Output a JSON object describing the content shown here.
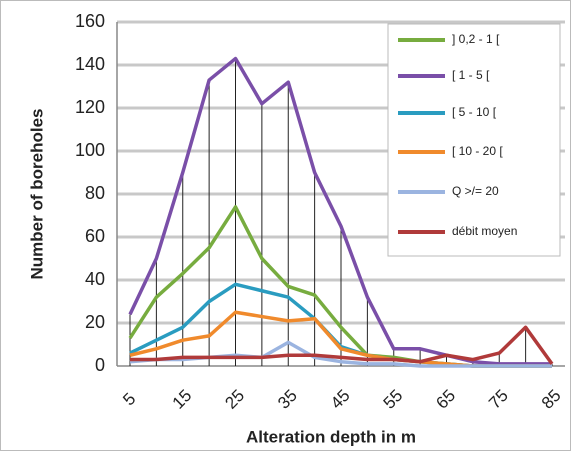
{
  "chart_data": {
    "type": "line",
    "y_label": "Number of boreholes",
    "x_label": "Alteration depth in m",
    "categories": [
      5,
      null,
      15,
      null,
      25,
      null,
      35,
      null,
      45,
      null,
      55,
      null,
      65,
      null,
      75,
      null,
      85
    ],
    "ylim": [
      0,
      160
    ],
    "yticks": [
      0,
      20,
      40,
      60,
      80,
      100,
      120,
      140,
      160
    ],
    "grid": true,
    "drop_lines": true,
    "legend": "right",
    "series": [
      {
        "name": "] 0,2 - 1 [",
        "color": "#77ac3f",
        "values": [
          13,
          32,
          43,
          55,
          74,
          50,
          37,
          33,
          18,
          5,
          4,
          2,
          1,
          0,
          0,
          0,
          0
        ]
      },
      {
        "name": "[ 1 - 5 [",
        "color": "#7a4fa8",
        "values": [
          24,
          50,
          90,
          133,
          143,
          122,
          132,
          90,
          65,
          32,
          8,
          8,
          5,
          2,
          1,
          1,
          1
        ]
      },
      {
        "name": "[ 5 - 10 [",
        "color": "#2a9cc0",
        "values": [
          6,
          12,
          18,
          30,
          38,
          35,
          32,
          22,
          9,
          5,
          3,
          2,
          1,
          0,
          0,
          0,
          0
        ]
      },
      {
        "name": "[ 10 - 20 [",
        "color": "#f08a2c",
        "values": [
          5,
          8,
          12,
          14,
          25,
          23,
          21,
          22,
          8,
          5,
          3,
          2,
          1,
          0,
          0,
          0,
          0
        ]
      },
      {
        "name": "Q >/= 20",
        "color": "#9bb4e0",
        "values": [
          2,
          3,
          3,
          4,
          5,
          4,
          11,
          4,
          2,
          1,
          1,
          0,
          0,
          0,
          0,
          0,
          0
        ]
      },
      {
        "name": "débit moyen",
        "color": "#b03a3a",
        "values": [
          3,
          3,
          4,
          4,
          4,
          4,
          5,
          5,
          4,
          3,
          3,
          2,
          5,
          3,
          6,
          18,
          1
        ]
      }
    ]
  }
}
